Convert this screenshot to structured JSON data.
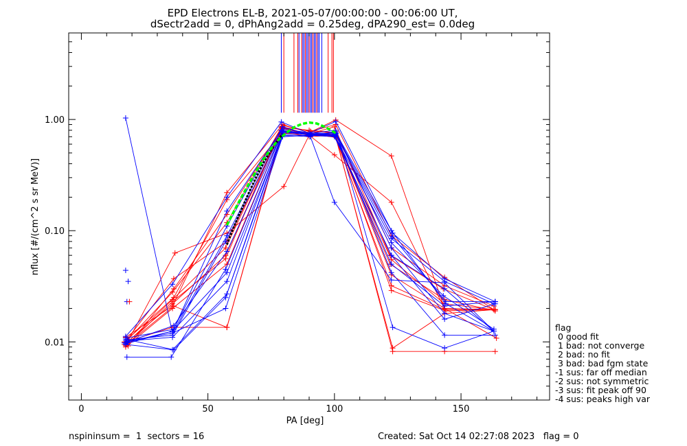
{
  "title_line1": "EPD Electrons EL-B, 2021-05-07/00:00:00 - 00:06:00 UT,",
  "title_line2": "dSectr2add = 0, dPhAng2add = 0.25deg, dPA290_est=    0.0deg",
  "legend": {
    "title": "flag",
    "items": [
      " 0 good fit",
      " 1 bad: not converge",
      " 2 bad: no fit",
      " 3 bad: bad fgm state",
      "-1 sus: far off median",
      "-2 sus: not symmetric",
      "-3 sus: fit peak off 90",
      "-4 sus: peaks high var"
    ]
  },
  "footer": {
    "left": "nspininsum =  1  sectors = 16",
    "right": "Created: Sat Oct 14 02:27:08 2023   flag = 0"
  },
  "colors": {
    "red": "#ff0000",
    "blue": "#0000ff",
    "fit": "#00ff00",
    "model": "#000000"
  },
  "chart_data": {
    "type": "line",
    "xlabel": "PA [deg]",
    "ylabel": "nflux [#/(cm^2 s sr MeV)]",
    "xlim": [
      -5,
      185
    ],
    "ylim": [
      0.003,
      6.0
    ],
    "ylog": true,
    "xticks": [
      0,
      50,
      100,
      150
    ],
    "xtick_labels": [
      "0",
      "50",
      "100",
      "150"
    ],
    "yticks": [
      0.01,
      0.1,
      1.0
    ],
    "ytick_labels": [
      "0.01",
      "0.10",
      "1.00"
    ],
    "vertical_lines": {
      "ymin": 1.15,
      "ymax": 6.0,
      "red_x": [
        80.0,
        84.0,
        85.5,
        87.0,
        88.5,
        90.0,
        91.5,
        93.0,
        97.5,
        99.0,
        99.6
      ],
      "blue_x": [
        79.0,
        86.0,
        87.5,
        88.0,
        89.0,
        89.5,
        90.5,
        91.0,
        92.0,
        92.5,
        93.5,
        94.0,
        95.0
      ]
    },
    "series": [
      {
        "color": "red",
        "x": [
          17.5,
          36.0,
          57.5,
          79.0,
          90.0,
          100.5,
          122.5,
          143.5,
          163.0
        ],
        "y": [
          0.01,
          0.028,
          0.118,
          0.85,
          0.8,
          0.76,
          0.07,
          0.032,
          0.021
        ]
      },
      {
        "color": "red",
        "x": [
          18.0,
          36.5,
          57.5,
          79.5,
          90.0,
          100.0,
          122.0,
          143.5,
          163.5
        ],
        "y": [
          0.0105,
          0.037,
          0.08,
          0.82,
          0.75,
          0.73,
          0.05,
          0.024,
          0.019
        ]
      },
      {
        "color": "red",
        "x": [
          17.0,
          36.0,
          57.0,
          79.0,
          90.0,
          100.5,
          122.5,
          143.5,
          163.0
        ],
        "y": [
          0.0095,
          0.022,
          0.06,
          0.8,
          0.72,
          0.71,
          0.04,
          0.02,
          0.0195
        ]
      },
      {
        "color": "red",
        "x": [
          17.5,
          36.0,
          57.5,
          79.5,
          90.0,
          100.0,
          122.5,
          143.5,
          163.5
        ],
        "y": [
          0.009,
          0.02,
          0.05,
          0.78,
          0.7,
          0.72,
          0.032,
          0.0195,
          0.0195
        ]
      },
      {
        "color": "red",
        "x": [
          18.5,
          36.5,
          57.5,
          80.0,
          90.5,
          100.5,
          122.5,
          143.5,
          163.0
        ],
        "y": [
          0.0092,
          0.03,
          0.14,
          0.88,
          0.78,
          0.9,
          0.09,
          0.038,
          0.0195
        ]
      },
      {
        "color": "red",
        "x": [
          17.0,
          36.5,
          57.5,
          79.0,
          90.0,
          100.0,
          122.0,
          143.0,
          163.0
        ],
        "y": [
          0.01,
          0.025,
          0.19,
          0.75,
          0.74,
          0.86,
          0.06,
          0.03,
          0.0195
        ]
      },
      {
        "color": "red",
        "x": [
          17.5,
          36.0,
          57.5,
          79.5,
          90.0,
          100.5,
          122.5,
          143.5,
          164.0
        ],
        "y": [
          0.011,
          0.021,
          0.22,
          0.9,
          0.76,
          0.99,
          0.47,
          0.02,
          0.0108
        ]
      },
      {
        "color": "red",
        "x": [
          18.0,
          36.0,
          57.0,
          79.5,
          90.0,
          100.0,
          122.5,
          143.5,
          163.5
        ],
        "y": [
          0.0098,
          0.024,
          0.07,
          0.85,
          0.72,
          0.48,
          0.18,
          0.02,
          0.0195
        ]
      },
      {
        "color": "red",
        "x": [
          17.5,
          37.0,
          57.5,
          80.0,
          90.0,
          100.5,
          123.0,
          143.5,
          163.5
        ],
        "y": [
          0.0093,
          0.063,
          0.095,
          0.25,
          0.72,
          0.7,
          0.0082,
          0.0082,
          0.0082
        ]
      },
      {
        "color": "red",
        "x": [
          17.5,
          36.0,
          57.5,
          79.5,
          90.0,
          100.5,
          123.0,
          143.5,
          163.0
        ],
        "y": [
          0.01,
          0.0135,
          0.0135,
          0.83,
          0.74,
          0.69,
          0.0088,
          0.018,
          0.0195
        ]
      },
      {
        "color": "red",
        "x": [
          18.0,
          36.5,
          57.5,
          80.0,
          90.5,
          100.0,
          122.5,
          144.0,
          163.5
        ],
        "y": [
          0.0095,
          0.021,
          0.0135,
          0.88,
          0.78,
          0.76,
          0.029,
          0.019,
          0.0195
        ]
      },
      {
        "color": "red",
        "x": [
          18.5,
          36.0,
          57.0,
          79.0,
          90.0,
          100.5,
          122.5,
          143.5,
          163.0
        ],
        "y": [
          0.0097,
          0.023,
          0.056,
          0.87,
          0.73,
          0.7,
          0.055,
          0.022,
          0.0195
        ]
      },
      {
        "color": "blue",
        "x": [
          17.5,
          36.0,
          57.5,
          79.0,
          90.0,
          100.5,
          122.5,
          143.5,
          163.0
        ],
        "y": [
          1.03,
          0.012,
          0.09,
          0.8,
          0.74,
          0.72,
          0.085,
          0.035,
          0.022
        ]
      },
      {
        "color": "blue",
        "x": [
          18.0,
          35.5,
          57.0,
          79.5,
          90.0,
          100.0,
          122.5,
          143.5,
          163.0
        ],
        "y": [
          0.0073,
          0.0073,
          0.045,
          0.78,
          0.72,
          0.7,
          0.06,
          0.03,
          0.0125
        ]
      },
      {
        "color": "blue",
        "x": [
          17.5,
          36.0,
          57.5,
          79.0,
          90.0,
          100.5,
          123.0,
          143.5,
          163.5
        ],
        "y": [
          0.0112,
          0.033,
          0.2,
          0.95,
          0.75,
          0.96,
          0.095,
          0.037,
          0.023
        ]
      },
      {
        "color": "blue",
        "x": [
          18.0,
          36.5,
          57.0,
          79.5,
          90.5,
          100.0,
          122.5,
          143.5,
          163.0
        ],
        "y": [
          0.0105,
          0.0085,
          0.025,
          0.72,
          0.7,
          0.18,
          0.036,
          0.034,
          0.0125
        ]
      },
      {
        "color": "blue",
        "x": [
          17.5,
          36.0,
          57.5,
          79.0,
          90.0,
          100.5,
          122.5,
          143.5,
          163.5
        ],
        "y": [
          0.0095,
          0.0085,
          0.027,
          0.7,
          0.72,
          0.75,
          0.042,
          0.0115,
          0.0115
        ]
      },
      {
        "color": "blue",
        "x": [
          18.5,
          36.0,
          57.5,
          79.5,
          90.0,
          100.0,
          122.5,
          143.0,
          163.0
        ],
        "y": [
          0.0102,
          0.011,
          0.035,
          0.76,
          0.74,
          0.72,
          0.078,
          0.026,
          0.013
        ]
      },
      {
        "color": "blue",
        "x": [
          17.0,
          36.5,
          57.5,
          80.0,
          90.0,
          100.5,
          123.0,
          144.0,
          163.5
        ],
        "y": [
          0.0098,
          0.014,
          0.065,
          0.82,
          0.76,
          0.74,
          0.088,
          0.023,
          0.023
        ]
      },
      {
        "color": "blue",
        "x": [
          17.5,
          36.0,
          57.0,
          79.0,
          90.5,
          100.5,
          122.5,
          143.5,
          163.0
        ],
        "y": [
          0.0104,
          0.0115,
          0.08,
          0.74,
          0.71,
          0.78,
          0.07,
          0.018,
          0.0125
        ]
      },
      {
        "color": "blue",
        "x": [
          18.0,
          36.0,
          57.5,
          79.5,
          90.0,
          100.0,
          122.5,
          143.5,
          163.5
        ],
        "y": [
          0.0099,
          0.0125,
          0.11,
          0.86,
          0.73,
          0.71,
          0.06,
          0.016,
          0.022
        ]
      },
      {
        "color": "blue",
        "x": [
          17.5,
          36.5,
          57.5,
          79.0,
          90.0,
          100.5,
          123.0,
          143.5,
          163.0
        ],
        "y": [
          0.0108,
          0.013,
          0.15,
          0.8,
          0.75,
          0.8,
          0.0135,
          0.0088,
          0.0125
        ]
      },
      {
        "color": "blue",
        "x": [
          18.0,
          36.0,
          57.0,
          79.5,
          90.0,
          100.0,
          122.5,
          143.5,
          163.5
        ],
        "y": [
          0.0101,
          0.012,
          0.02,
          0.7,
          0.72,
          0.73,
          0.05,
          0.021,
          0.023
        ]
      },
      {
        "color": "blue",
        "x": [
          17.5,
          36.0,
          57.5,
          80.0,
          90.5,
          100.5,
          122.5,
          144.0,
          163.0
        ],
        "y": [
          0.0096,
          0.0125,
          0.042,
          0.78,
          0.74,
          0.76,
          0.1,
          0.022,
          0.0125
        ]
      }
    ],
    "scattered_points": [
      {
        "color": "blue",
        "x": 17.5,
        "y": 0.044
      },
      {
        "color": "blue",
        "x": 18.5,
        "y": 0.035
      },
      {
        "color": "blue",
        "x": 18.0,
        "y": 0.023
      },
      {
        "color": "red",
        "x": 19.0,
        "y": 0.023
      }
    ],
    "fit_curve": {
      "color": "fit",
      "x": [
        57.5,
        60,
        63,
        66,
        69,
        72,
        75,
        78,
        81,
        84,
        87,
        90,
        93,
        96,
        99,
        101
      ],
      "y": [
        0.112,
        0.145,
        0.195,
        0.26,
        0.34,
        0.44,
        0.55,
        0.66,
        0.76,
        0.85,
        0.91,
        0.94,
        0.92,
        0.86,
        0.79,
        0.74
      ]
    },
    "model_curve": {
      "color": "model",
      "x": [
        57.5,
        60,
        63,
        66,
        69,
        72,
        75,
        78,
        79.5
      ],
      "y": [
        0.075,
        0.105,
        0.15,
        0.215,
        0.3,
        0.41,
        0.53,
        0.67,
        0.74
      ]
    }
  }
}
